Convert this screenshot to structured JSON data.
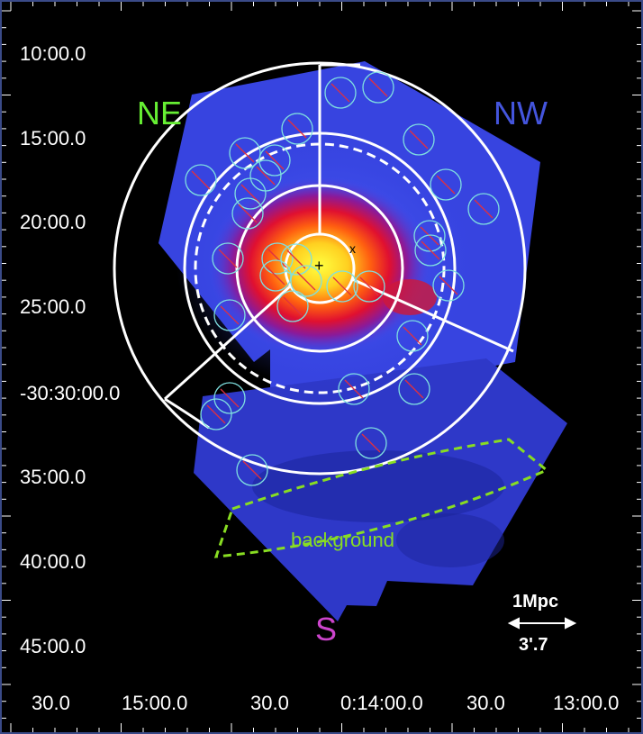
{
  "y_axis_labels": [
    "10:00.0",
    "15:00.0",
    "20:00.0",
    "25:00.0",
    "-30:30:00.0",
    "35:00.0",
    "40:00.0",
    "45:00.0"
  ],
  "x_axis_labels": [
    "30.0",
    "15:00.0",
    "30.0",
    "0:14:00.0",
    "30.0",
    "13:00.0"
  ],
  "regions": {
    "ne": "NE",
    "nw": "NW",
    "s": "S"
  },
  "background_label": "background",
  "scale_bar": {
    "distance": "1Mpc",
    "angle": "3'.7"
  },
  "markers": {
    "center": "+",
    "offset": "x"
  },
  "colors": {
    "ne": "#66ee33",
    "nw": "#4455dd",
    "s": "#cc44cc",
    "background": "#88dd22"
  }
}
